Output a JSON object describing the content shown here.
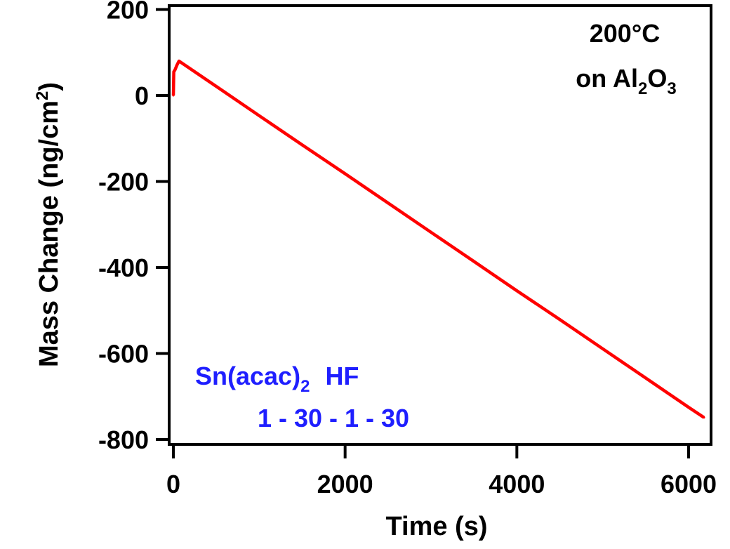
{
  "chart_data": {
    "type": "line",
    "title": "",
    "xlabel": "Time (s)",
    "ylabel": "Mass Change (ng/cm",
    "ylabel_sup": "2",
    "ylabel_end": ")",
    "xlim": [
      -50,
      6250
    ],
    "ylim": [
      -820,
      210
    ],
    "xticks": [
      0,
      2000,
      4000,
      6000
    ],
    "yticks": [
      200,
      0,
      -200,
      -400,
      -600,
      -800
    ],
    "grid": false,
    "annotations": {
      "temp": "200°C",
      "substrate_prefix": "on Al",
      "substrate_sub1": "2",
      "substrate_mid": "O",
      "substrate_sub2": "3",
      "precursor": "Sn(acac)",
      "precursor_sub": "2",
      "reactant": "HF",
      "sequence": "1 - 30 - 1 - 30"
    },
    "colors": {
      "series": "#ff0000",
      "annotation_blue": "#1f1fff",
      "axis": "#000000"
    },
    "series": [
      {
        "x": [
          0,
          5,
          20,
          40,
          65,
          500,
          1000,
          1500,
          2000,
          2500,
          3000,
          3500,
          4000,
          4500,
          5000,
          5500,
          6000,
          6180
        ],
        "y": [
          0,
          55,
          60,
          70,
          80,
          21,
          -47,
          -115,
          -182,
          -250,
          -318,
          -386,
          -454,
          -521,
          -589,
          -657,
          -725,
          -749
        ]
      }
    ]
  }
}
